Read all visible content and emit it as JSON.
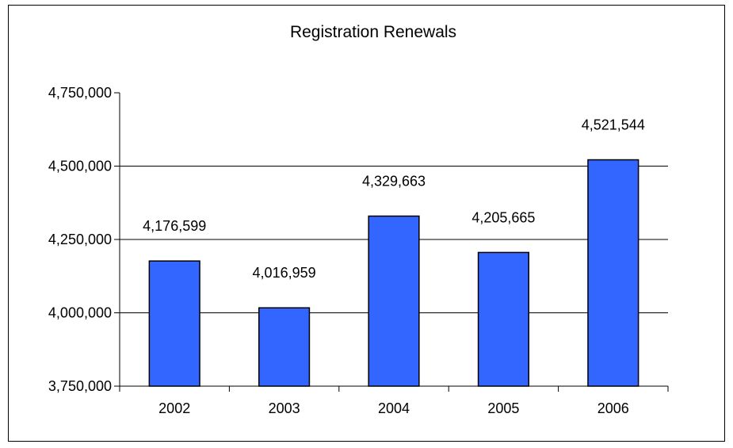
{
  "chart_data": {
    "type": "bar",
    "title": "Registration Renewals",
    "xlabel": "",
    "ylabel": "",
    "categories": [
      "2002",
      "2003",
      "2004",
      "2005",
      "2006"
    ],
    "values": [
      4176599,
      4016959,
      4329663,
      4205665,
      4521544
    ],
    "data_labels": [
      "4,176,599",
      "4,016,959",
      "4,329,663",
      "4,205,665",
      "4,521,544"
    ],
    "ylim": [
      3750000,
      4750000
    ],
    "yticks": [
      3750000,
      4000000,
      4250000,
      4500000,
      4750000
    ],
    "ytick_labels": [
      "3,750,000",
      "4,000,000",
      "4,250,000",
      "4,500,000",
      "4,750,000"
    ],
    "grid": true,
    "legend": "none",
    "colors": {
      "bar_fill": "#3366FF",
      "bar_stroke": "#000000",
      "gridline": "#000000",
      "axis": "#000000",
      "text": "#000000"
    }
  }
}
